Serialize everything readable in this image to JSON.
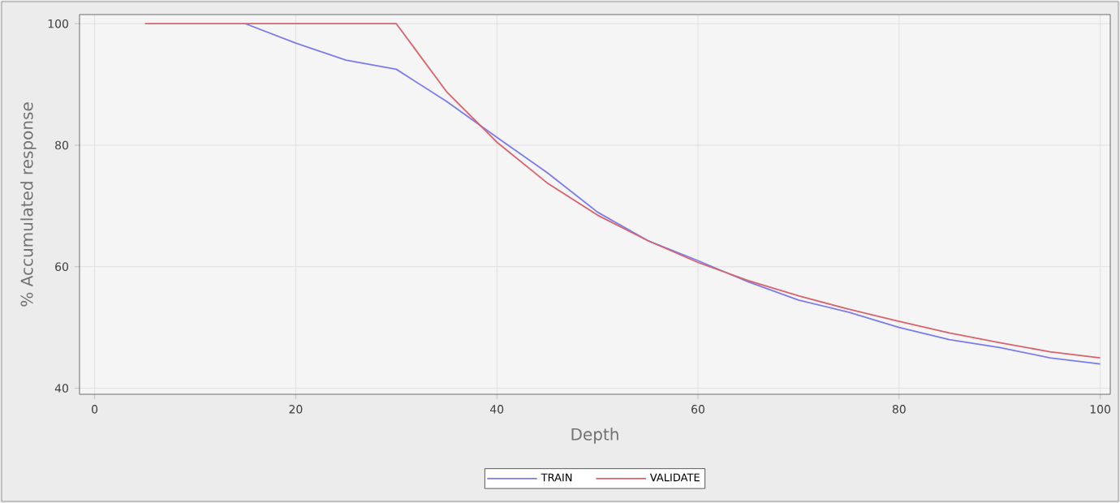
{
  "chart_data": {
    "type": "line",
    "xlabel": "Depth",
    "ylabel": "% Accumulated response",
    "x": [
      5,
      10,
      15,
      20,
      25,
      30,
      35,
      40,
      45,
      50,
      55,
      60,
      65,
      70,
      75,
      80,
      85,
      90,
      95,
      100
    ],
    "series": [
      {
        "name": "TRAIN",
        "color": "#7b7bf0",
        "values": [
          null,
          null,
          100,
          96.8,
          94,
          92.5,
          87.2,
          81.3,
          75.5,
          69,
          64.3,
          61,
          57.5,
          54.5,
          52.5,
          50,
          48,
          46.7,
          45,
          44
        ]
      },
      {
        "name": "VALIDATE",
        "color": "#d9626b",
        "values": [
          100,
          100,
          100,
          100,
          100,
          100,
          88.8,
          80.5,
          73.8,
          68.5,
          64.3,
          60.7,
          57.7,
          55.2,
          53,
          51,
          49.1,
          47.5,
          46,
          45
        ]
      }
    ],
    "xlim": [
      -1.5,
      101
    ],
    "ylim": [
      39,
      101.5
    ],
    "xticks": [
      0,
      20,
      40,
      60,
      80,
      100
    ],
    "yticks": [
      40,
      60,
      80,
      100
    ],
    "grid": true,
    "legend": "bottom",
    "marker": "none",
    "line_style": "solid"
  }
}
